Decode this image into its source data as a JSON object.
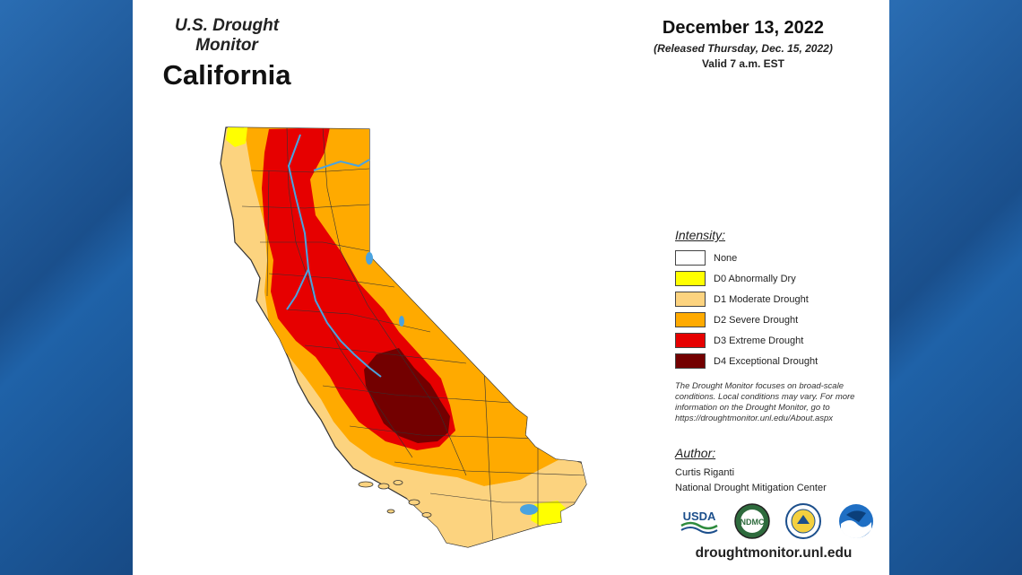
{
  "header": {
    "monitor_title": "U.S. Drought Monitor",
    "state": "California",
    "date": "December 13, 2022",
    "released": "(Released Thursday, Dec. 15, 2022)",
    "valid": "Valid 7 a.m. EST"
  },
  "legend": {
    "title": "Intensity:",
    "items": [
      {
        "label": "None",
        "color": "#ffffff"
      },
      {
        "label": "D0 Abnormally Dry",
        "color": "#ffff00"
      },
      {
        "label": "D1 Moderate Drought",
        "color": "#fcd37f"
      },
      {
        "label": "D2 Severe Drought",
        "color": "#ffaa00"
      },
      {
        "label": "D3 Extreme Drought",
        "color": "#e60000"
      },
      {
        "label": "D4 Exceptional Drought",
        "color": "#730000"
      }
    ]
  },
  "note": "The Drought Monitor focuses on broad-scale conditions. Local conditions may vary. For more information on the Drought Monitor, go to https://droughtmonitor.unl.edu/About.aspx",
  "author": {
    "title": "Author:",
    "name": "Curtis Riganti",
    "org": "National Drought Mitigation Center"
  },
  "logos": {
    "usda": "USDA",
    "ndmc": "NDMC",
    "doc": "DOC seal",
    "noaa": "NOAA"
  },
  "site": "droughtmonitor.unl.edu",
  "colors": {
    "water": "#4aa3df",
    "border": "#333333",
    "page_bg": "#1f5c9c"
  }
}
